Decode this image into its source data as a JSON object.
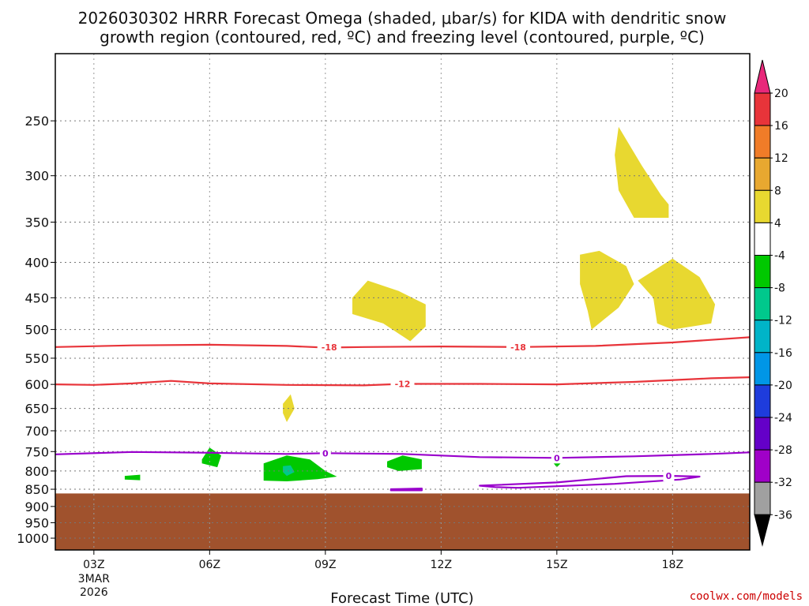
{
  "title": {
    "line1": "2026030302 HRRR Forecast Omega (shaded, μbar/s) for KIDA with dendritic snow",
    "line2": "growth region (contoured, red, ºC) and freezing level (contoured, purple, ºC)"
  },
  "credit": "coolwx.com/models",
  "chart_data": {
    "type": "time-height cross section",
    "title": "2026030302 HRRR Forecast Omega (shaded, μbar/s) for KIDA with dendritic snow growth region (contoured, red, ºC) and freezing level (contoured, purple, ºC)",
    "xlabel": "Forecast Time (UTC)",
    "x_ticks": [
      "03Z",
      "06Z",
      "09Z",
      "12Z",
      "15Z",
      "18Z"
    ],
    "x_tick_hours": [
      3,
      6,
      9,
      12,
      15,
      18
    ],
    "x_date_label": [
      "3MAR",
      "2026"
    ],
    "xlim_hours": [
      2,
      20
    ],
    "ylabel": "",
    "y_ticks": [
      250,
      300,
      350,
      400,
      450,
      500,
      550,
      600,
      650,
      700,
      750,
      800,
      850,
      900,
      950,
      1000
    ],
    "ylim_hpa": [
      200,
      1040
    ],
    "y_scale": "log-pressure",
    "grid": "dotted",
    "terrain_top_hpa": 862,
    "terrain_color": "#a0522d",
    "colorbar": {
      "labels": [
        "20",
        "16",
        "12",
        "8",
        "4",
        "-4",
        "-8",
        "-12",
        "-16",
        "-20",
        "-24",
        "-28",
        "-32",
        "-36"
      ],
      "colors": [
        "#e8287a",
        "#e8343a",
        "#f07c28",
        "#e8a830",
        "#e8d830",
        "#ffffff",
        "#00c800",
        "#00c88c",
        "#00b4c8",
        "#0096e6",
        "#1e3cdc",
        "#6400c8",
        "#a000c8",
        "#a0a0a0",
        "#000000"
      ]
    },
    "contours": {
      "dendritic_growth_region": [
        {
          "level": -18,
          "color": "#e8343a",
          "points": [
            [
              2,
              530
            ],
            [
              4,
              527
            ],
            [
              6,
              526
            ],
            [
              8,
              528
            ],
            [
              9,
              531
            ],
            [
              10,
              530
            ],
            [
              12,
              529
            ],
            [
              14,
              530
            ],
            [
              16,
              528
            ],
            [
              18,
              522
            ],
            [
              20,
              513
            ]
          ]
        },
        {
          "level": -12,
          "color": "#e8343a",
          "points": [
            [
              2,
              600
            ],
            [
              3,
              601
            ],
            [
              4,
              598
            ],
            [
              5,
              593
            ],
            [
              6,
              598
            ],
            [
              8,
              601
            ],
            [
              10,
              602
            ],
            [
              11,
              599
            ],
            [
              13,
              599
            ],
            [
              15,
              600
            ],
            [
              17,
              595
            ],
            [
              19,
              588
            ],
            [
              20,
              586
            ]
          ]
        }
      ],
      "freezing_level": [
        {
          "level": 0,
          "color": "#9900cc",
          "points": [
            [
              2,
              757
            ],
            [
              4,
              751
            ],
            [
              6,
              753
            ],
            [
              8,
              756
            ],
            [
              9,
              754
            ],
            [
              11,
              756
            ],
            [
              13,
              764
            ],
            [
              15,
              766
            ],
            [
              17,
              762
            ],
            [
              19,
              756
            ],
            [
              20,
              752
            ]
          ]
        },
        {
          "level": 0,
          "color": "#9900cc",
          "closed": true,
          "points": [
            [
              13,
              840
            ],
            [
              15,
              831
            ],
            [
              16.8,
              814
            ],
            [
              18,
              813
            ],
            [
              18.7,
              815
            ],
            [
              18.2,
              823
            ],
            [
              16.5,
              835
            ],
            [
              14,
              846
            ],
            [
              13.4,
              844
            ]
          ]
        },
        {
          "level": 0,
          "color": "#9900cc",
          "closed": true,
          "points": [
            [
              10.7,
              850
            ],
            [
              11.5,
              848
            ],
            [
              11.5,
              853
            ],
            [
              10.7,
              853
            ]
          ]
        }
      ]
    },
    "omega_regions": [
      {
        "range": "4 to 8",
        "color": "#e8d830",
        "points": [
          [
            16.6,
            255
          ],
          [
            17.2,
            290
          ],
          [
            17.7,
            320
          ],
          [
            17.9,
            330
          ],
          [
            17.9,
            345
          ],
          [
            17.0,
            345
          ],
          [
            16.6,
            315
          ],
          [
            16.5,
            280
          ]
        ]
      },
      {
        "range": "4 to 8",
        "color": "#e8d830",
        "points": [
          [
            15.6,
            390
          ],
          [
            16.1,
            385
          ],
          [
            16.8,
            405
          ],
          [
            17.0,
            430
          ],
          [
            16.6,
            465
          ],
          [
            15.9,
            500
          ],
          [
            15.8,
            470
          ],
          [
            15.6,
            430
          ]
        ]
      },
      {
        "range": "4 to 8",
        "color": "#e8d830",
        "points": [
          [
            17.1,
            425
          ],
          [
            18.0,
            395
          ],
          [
            18.7,
            420
          ],
          [
            19.1,
            460
          ],
          [
            19.0,
            490
          ],
          [
            18.0,
            500
          ],
          [
            17.6,
            490
          ],
          [
            17.5,
            450
          ]
        ]
      },
      {
        "range": "4 to 8",
        "color": "#e8d830",
        "points": [
          [
            9.7,
            450
          ],
          [
            10.1,
            425
          ],
          [
            10.9,
            440
          ],
          [
            11.6,
            460
          ],
          [
            11.6,
            495
          ],
          [
            11.2,
            520
          ],
          [
            10.5,
            490
          ],
          [
            9.7,
            475
          ]
        ]
      },
      {
        "range": "4 to 8",
        "color": "#e8d830",
        "points": [
          [
            7.9,
            640
          ],
          [
            8.1,
            620
          ],
          [
            8.2,
            650
          ],
          [
            8.0,
            680
          ],
          [
            7.9,
            660
          ]
        ]
      },
      {
        "range": "-4 to -8",
        "color": "#00c800",
        "points": [
          [
            5.8,
            770
          ],
          [
            6.0,
            740
          ],
          [
            6.3,
            760
          ],
          [
            6.2,
            790
          ],
          [
            5.8,
            780
          ]
        ]
      },
      {
        "range": "-4 to -8",
        "color": "#00c800",
        "points": [
          [
            7.4,
            780
          ],
          [
            8.0,
            760
          ],
          [
            8.6,
            770
          ],
          [
            9.0,
            800
          ],
          [
            9.3,
            815
          ],
          [
            8.8,
            822
          ],
          [
            8.0,
            828
          ],
          [
            7.4,
            826
          ]
        ]
      },
      {
        "range": "-4 to -8",
        "color": "#00c800",
        "points": [
          [
            10.6,
            775
          ],
          [
            11.0,
            760
          ],
          [
            11.5,
            770
          ],
          [
            11.5,
            795
          ],
          [
            10.9,
            800
          ],
          [
            10.6,
            790
          ]
        ]
      },
      {
        "range": "-4 to -8",
        "color": "#00c800",
        "points": [
          [
            3.8,
            813
          ],
          [
            4.2,
            810
          ],
          [
            4.2,
            825
          ],
          [
            3.8,
            823
          ]
        ]
      },
      {
        "range": "-4 to -8",
        "color": "#00c800",
        "points": [
          [
            14.9,
            778
          ],
          [
            15.1,
            780
          ],
          [
            15.0,
            790
          ]
        ]
      },
      {
        "range": "-8 to -12",
        "color": "#00c88c",
        "points": [
          [
            7.9,
            787
          ],
          [
            8.1,
            785
          ],
          [
            8.2,
            803
          ],
          [
            8.0,
            813
          ],
          [
            7.9,
            803
          ]
        ]
      }
    ],
    "contour_labels": [
      {
        "text": "-18",
        "x": 9.1,
        "p": 530,
        "color": "#e8343a"
      },
      {
        "text": "-18",
        "x": 14.0,
        "p": 530,
        "color": "#e8343a"
      },
      {
        "text": "-12",
        "x": 11.0,
        "p": 599,
        "color": "#e8343a"
      },
      {
        "text": "0",
        "x": 9.0,
        "p": 754,
        "color": "#9900cc"
      },
      {
        "text": "0",
        "x": 15.0,
        "p": 766,
        "color": "#9900cc"
      },
      {
        "text": "0",
        "x": 17.9,
        "p": 813,
        "color": "#9900cc"
      }
    ]
  }
}
